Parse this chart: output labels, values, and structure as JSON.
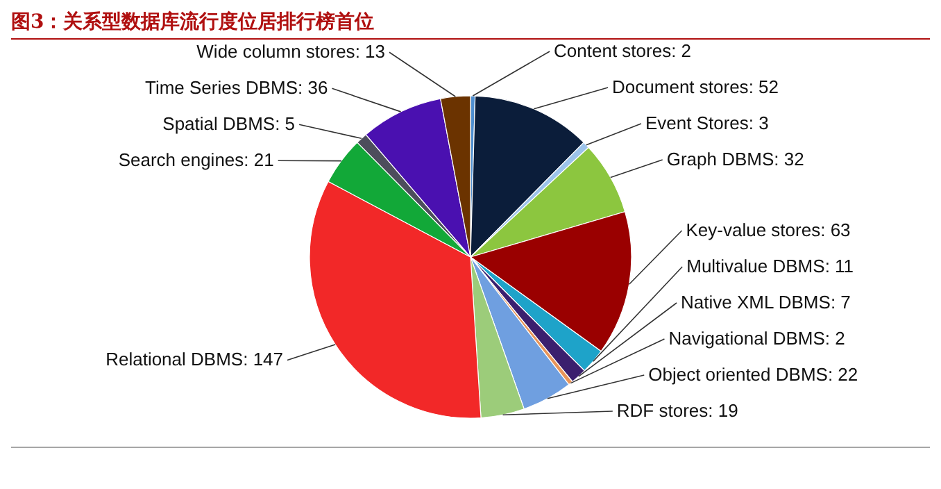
{
  "chart_data": {
    "type": "pie",
    "title": "图3：关系型数据库流行度位居排行榜首位",
    "categories": [
      "Content stores",
      "Document stores",
      "Event Stores",
      "Graph DBMS",
      "Key-value stores",
      "Multivalue DBMS",
      "Native XML DBMS",
      "Navigational DBMS",
      "Object oriented DBMS",
      "RDF stores",
      "Relational DBMS",
      "Search engines",
      "Spatial DBMS",
      "Time Series DBMS",
      "Wide column stores"
    ],
    "values": [
      2,
      52,
      3,
      32,
      63,
      11,
      7,
      2,
      22,
      19,
      147,
      21,
      5,
      36,
      13
    ],
    "colors": [
      "#4f8fd0",
      "#0b1d3a",
      "#9cc3ea",
      "#8cc63f",
      "#9a0000",
      "#1ea3c9",
      "#3b1f6e",
      "#e8955a",
      "#6f9fe0",
      "#9ccc7a",
      "#f22828",
      "#12a838",
      "#4d4d5c",
      "#4a10b0",
      "#6b3300"
    ],
    "value_labels": [
      ": 2",
      ": 52",
      ": 3",
      ": 32",
      ": 63",
      ": 11",
      ": 7",
      ": 2",
      ": 22",
      ": 19",
      ": 147",
      ": 21",
      ": 5",
      ": 36",
      ": 13"
    ]
  }
}
